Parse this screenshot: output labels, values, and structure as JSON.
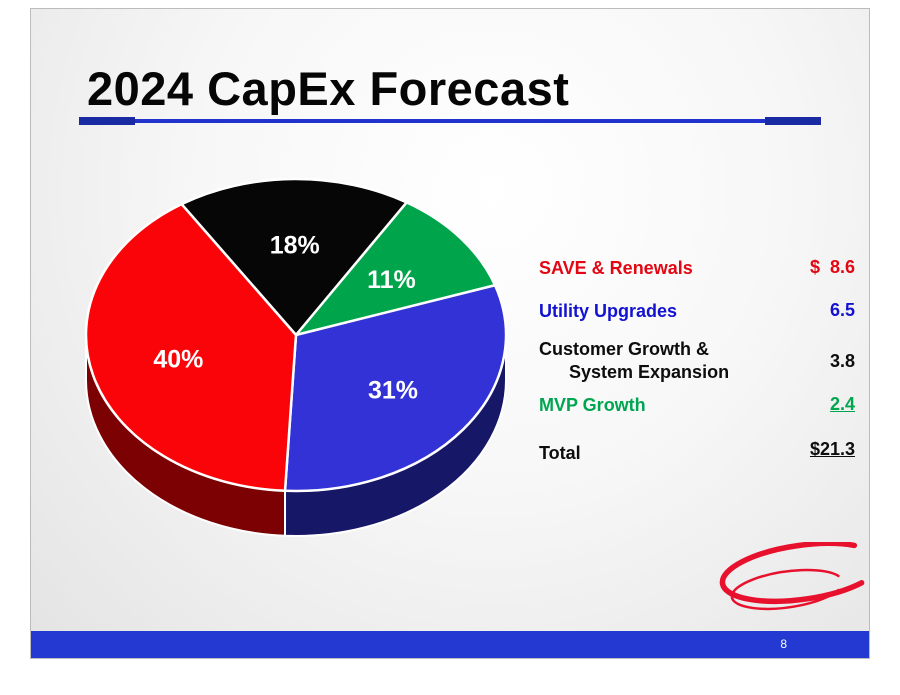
{
  "slide": {
    "title": "2024 CapEx Forecast",
    "page_number": "8"
  },
  "colors": {
    "title_rule_blue": "#2133cc",
    "footer_bar_blue": "#2439d2",
    "logo_red": "#e8112d"
  },
  "legend": {
    "rows": [
      {
        "label": "SAVE & Renewals",
        "value": "$  8.6",
        "color": "#e30613"
      },
      {
        "label": "Utility Upgrades",
        "value": "6.5",
        "color": "#1212d0"
      },
      {
        "label": "Customer Growth &",
        "label2": "System Expansion",
        "value": "3.8",
        "color": "#0d0d0d"
      },
      {
        "label": "MVP Growth",
        "value": "2.4",
        "color": "#00a550",
        "underline": true
      },
      {
        "label": "Total",
        "value": "$21.3",
        "color": "#0d0d0d",
        "underline": true
      }
    ]
  },
  "chart_data": {
    "type": "pie",
    "is_3d": true,
    "title": "2024 CapEx Forecast",
    "start_angle_deg": -33,
    "legend_position": "right",
    "total_label": "Total",
    "total_value": 21.3,
    "slices": [
      {
        "label": "Customer Growth & System Expansion",
        "percent": 18,
        "value": 3.8,
        "display": "18%",
        "color": "#060606",
        "dark_color": "#1f1f1f"
      },
      {
        "label": "MVP Growth",
        "percent": 11,
        "value": 2.4,
        "display": "11%",
        "color": "#00a44a",
        "dark_color": "#005a24"
      },
      {
        "label": "Utility Upgrades",
        "percent": 31,
        "value": 6.5,
        "display": "31%",
        "color": "#3232d6",
        "dark_color": "#171768"
      },
      {
        "label": "SAVE & Renewals",
        "percent": 40,
        "value": 8.6,
        "display": "40%",
        "color": "#fb0409",
        "dark_color": "#7c0103"
      }
    ]
  }
}
